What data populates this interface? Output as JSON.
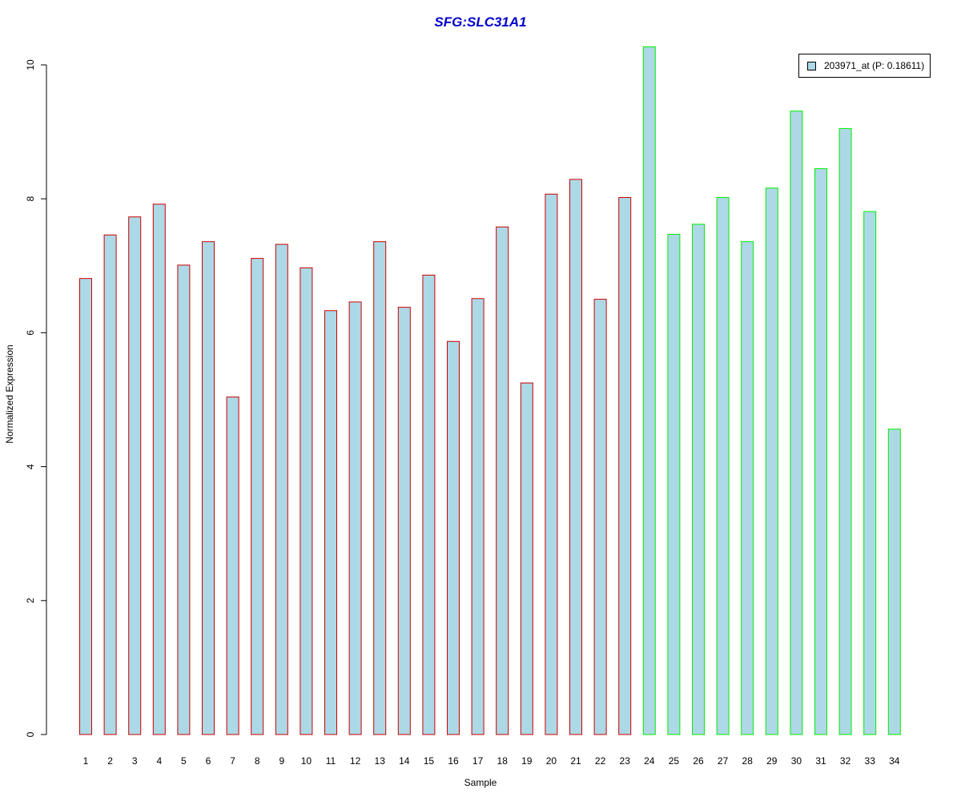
{
  "chart_data": {
    "type": "bar",
    "title": "SFG:SLC31A1",
    "xlabel": "Sample",
    "ylabel": "Normalized Expression",
    "ylim": [
      0,
      10.3
    ],
    "yticks": [
      "0",
      "2",
      "4",
      "6",
      "8",
      "10"
    ],
    "categories": [
      "1",
      "2",
      "3",
      "4",
      "5",
      "6",
      "7",
      "8",
      "9",
      "10",
      "11",
      "12",
      "13",
      "14",
      "15",
      "16",
      "17",
      "18",
      "19",
      "20",
      "21",
      "22",
      "23",
      "24",
      "25",
      "26",
      "27",
      "28",
      "29",
      "30",
      "31",
      "32",
      "33",
      "34"
    ],
    "series": [
      {
        "name": "203971_at (P: 0.18611)",
        "fill": "#add8e6",
        "values": [
          6.81,
          7.46,
          7.73,
          7.92,
          7.01,
          7.36,
          5.04,
          7.11,
          7.32,
          6.97,
          6.33,
          6.46,
          7.36,
          6.38,
          6.86,
          5.87,
          6.51,
          7.58,
          5.25,
          8.07,
          8.29,
          6.5,
          8.02,
          10.27,
          7.47,
          7.62,
          8.02,
          7.36,
          8.16,
          9.31,
          8.45,
          9.05,
          7.81,
          4.56
        ]
      }
    ],
    "group_colors": {
      "group1": "#cc0000",
      "group2": "#00ee00"
    },
    "group_split_after": 23,
    "legend_position": "top-right",
    "grid": false
  }
}
